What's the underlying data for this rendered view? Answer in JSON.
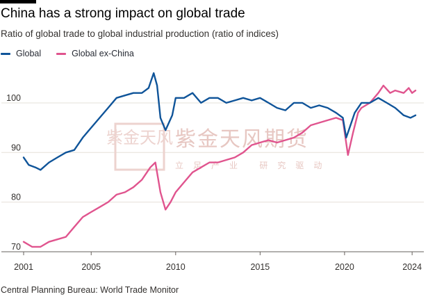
{
  "title": "China has a strong impact on global trade",
  "subtitle": "Ratio of global trade to global industrial production (ratio of indices)",
  "source": "Central Planning Bureau: World Trade Monitor",
  "legend": [
    {
      "name": "Global",
      "color": "#0f5499"
    },
    {
      "name": "Global ex-China",
      "color": "#e0548e"
    }
  ],
  "watermark": {
    "mark": "紫金天风",
    "text": "紫金天风期货",
    "subtext": "立足产业 研究驱动"
  },
  "chart_data": {
    "type": "line",
    "title": "China has a strong impact on global trade",
    "xlabel": "",
    "ylabel": "",
    "xlim": [
      2001,
      2024.2
    ],
    "ylim": [
      70,
      107
    ],
    "yticks": [
      70,
      80,
      90,
      100
    ],
    "xticks": [
      2001,
      2005,
      2010,
      2015,
      2020,
      2024
    ],
    "grid": true,
    "series": [
      {
        "name": "Global",
        "color": "#0f5499",
        "points": [
          [
            2001,
            89
          ],
          [
            2001.3,
            87.5
          ],
          [
            2001.7,
            87
          ],
          [
            2002,
            86.5
          ],
          [
            2002.5,
            88
          ],
          [
            2003,
            89
          ],
          [
            2003.5,
            90
          ],
          [
            2004,
            90.5
          ],
          [
            2004.5,
            93
          ],
          [
            2005,
            95
          ],
          [
            2005.5,
            97
          ],
          [
            2006,
            99
          ],
          [
            2006.5,
            101
          ],
          [
            2007,
            101.5
          ],
          [
            2007.5,
            102
          ],
          [
            2008,
            102
          ],
          [
            2008.4,
            103
          ],
          [
            2008.7,
            106
          ],
          [
            2008.9,
            103.5
          ],
          [
            2009.1,
            97
          ],
          [
            2009.4,
            94.5
          ],
          [
            2009.8,
            97.5
          ],
          [
            2010,
            101
          ],
          [
            2010.5,
            101
          ],
          [
            2011,
            102
          ],
          [
            2011.5,
            100
          ],
          [
            2012,
            101
          ],
          [
            2012.5,
            101
          ],
          [
            2013,
            100
          ],
          [
            2013.5,
            100.5
          ],
          [
            2014,
            101
          ],
          [
            2014.5,
            100.5
          ],
          [
            2015,
            101
          ],
          [
            2015.5,
            100
          ],
          [
            2016,
            99
          ],
          [
            2016.5,
            98.5
          ],
          [
            2017,
            100
          ],
          [
            2017.5,
            100
          ],
          [
            2018,
            99
          ],
          [
            2018.5,
            99.5
          ],
          [
            2019,
            99
          ],
          [
            2019.5,
            98
          ],
          [
            2019.9,
            97
          ],
          [
            2020.1,
            93
          ],
          [
            2020.3,
            95
          ],
          [
            2020.6,
            98
          ],
          [
            2021,
            100
          ],
          [
            2021.5,
            100
          ],
          [
            2022,
            101
          ],
          [
            2022.5,
            100
          ],
          [
            2023,
            99
          ],
          [
            2023.5,
            97.5
          ],
          [
            2023.9,
            97
          ],
          [
            2024.2,
            97.5
          ]
        ]
      },
      {
        "name": "Global ex-China",
        "color": "#e0548e",
        "points": [
          [
            2001,
            72
          ],
          [
            2001.5,
            71
          ],
          [
            2002,
            71
          ],
          [
            2002.5,
            72
          ],
          [
            2003,
            72.5
          ],
          [
            2003.5,
            73
          ],
          [
            2004,
            75
          ],
          [
            2004.5,
            77
          ],
          [
            2005,
            78
          ],
          [
            2005.5,
            79
          ],
          [
            2006,
            80
          ],
          [
            2006.5,
            81.5
          ],
          [
            2007,
            82
          ],
          [
            2007.5,
            83
          ],
          [
            2008,
            84.5
          ],
          [
            2008.5,
            87
          ],
          [
            2008.8,
            88
          ],
          [
            2009.1,
            82
          ],
          [
            2009.4,
            78.5
          ],
          [
            2009.7,
            80
          ],
          [
            2010,
            82
          ],
          [
            2010.5,
            84
          ],
          [
            2011,
            86
          ],
          [
            2011.5,
            87
          ],
          [
            2012,
            88
          ],
          [
            2012.5,
            88
          ],
          [
            2013,
            88.5
          ],
          [
            2013.5,
            89
          ],
          [
            2014,
            90
          ],
          [
            2014.5,
            91.5
          ],
          [
            2015,
            92
          ],
          [
            2015.5,
            92.5
          ],
          [
            2016,
            92
          ],
          [
            2016.5,
            92.5
          ],
          [
            2017,
            93
          ],
          [
            2017.5,
            94
          ],
          [
            2018,
            95.5
          ],
          [
            2018.5,
            96
          ],
          [
            2019,
            96.5
          ],
          [
            2019.5,
            97
          ],
          [
            2019.9,
            96.5
          ],
          [
            2020.2,
            89.5
          ],
          [
            2020.5,
            94
          ],
          [
            2020.8,
            98
          ],
          [
            2021,
            99
          ],
          [
            2021.5,
            100
          ],
          [
            2022,
            102
          ],
          [
            2022.3,
            103.5
          ],
          [
            2022.7,
            102
          ],
          [
            2023,
            102.5
          ],
          [
            2023.5,
            102
          ],
          [
            2023.8,
            103
          ],
          [
            2024,
            102
          ],
          [
            2024.2,
            102.5
          ]
        ]
      }
    ]
  }
}
